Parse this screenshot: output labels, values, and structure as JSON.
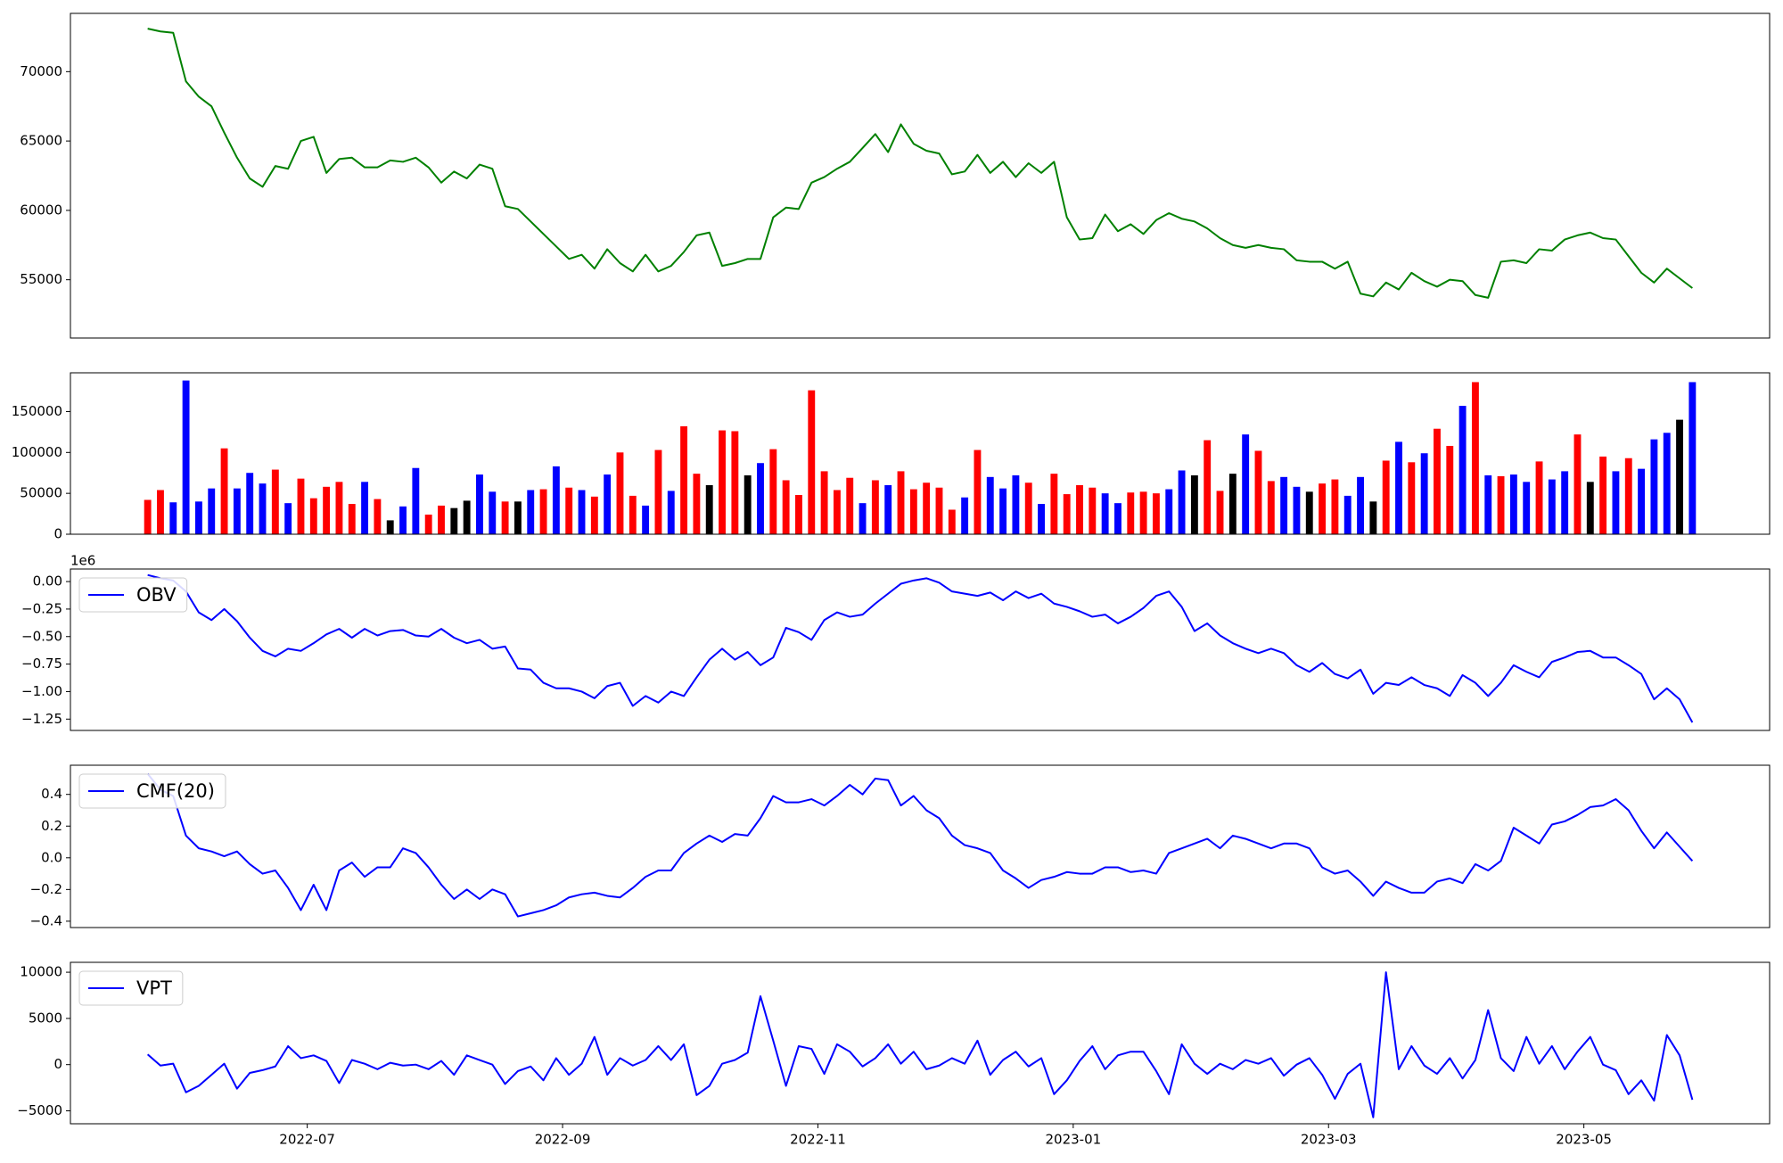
{
  "chart_data": [
    {
      "type": "line",
      "color": "green",
      "values": [
        73100,
        72900,
        72800,
        69300,
        68200,
        67500,
        65600,
        63800,
        62300,
        61700,
        63200,
        63000,
        65000,
        65300,
        62700,
        63700,
        63800,
        63100,
        63100,
        63600,
        63500,
        63800,
        63100,
        62000,
        62800,
        62300,
        63300,
        63000,
        60300,
        60100,
        59200,
        58300,
        57400,
        56500,
        56800,
        55800,
        57200,
        56200,
        55600,
        56800,
        55600,
        56000,
        57000,
        58200,
        58400,
        56000,
        56200,
        56500,
        56500,
        59500,
        60200,
        60100,
        62000,
        62400,
        63000,
        63500,
        64500,
        65500,
        64200,
        66200,
        64800,
        64300,
        64100,
        62600,
        62800,
        64000,
        62700,
        63500,
        62400,
        63400,
        62700,
        63500,
        59500,
        57900,
        58000,
        59700,
        58500,
        59000,
        58300,
        59300,
        59800,
        59400,
        59200,
        58700,
        58000,
        57500,
        57300,
        57500,
        57300,
        57200,
        56400,
        56300,
        56300,
        55800,
        56300,
        54000,
        53800,
        54800,
        54300,
        55500,
        54900,
        54500,
        55000,
        54900,
        53900,
        53700,
        56300,
        56400,
        56200,
        57200,
        57100,
        57900,
        58200,
        58400,
        58000,
        57900,
        56700,
        55500,
        54800,
        55800,
        55100,
        54400
      ],
      "ylim": [
        50800,
        74200
      ],
      "yticks": [
        55000,
        60000,
        65000,
        70000
      ]
    },
    {
      "type": "bar",
      "values": [
        42000,
        54000,
        39000,
        188000,
        40000,
        56000,
        105000,
        56000,
        75000,
        62000,
        79000,
        38000,
        68000,
        44000,
        58000,
        64000,
        37000,
        64000,
        43000,
        17000,
        34000,
        81000,
        24000,
        35000,
        32000,
        41000,
        73000,
        52000,
        40000,
        40000,
        54000,
        55000,
        83000,
        57000,
        54000,
        46000,
        73000,
        100000,
        47000,
        35000,
        103000,
        53000,
        132000,
        74000,
        60000,
        127000,
        126000,
        72000,
        87000,
        104000,
        66000,
        48000,
        176000,
        77000,
        54000,
        69000,
        38000,
        66000,
        60000,
        77000,
        55000,
        63000,
        57000,
        30000,
        45000,
        103000,
        70000,
        56000,
        72000,
        63000,
        37000,
        74000,
        49000,
        60000,
        57000,
        50000,
        38000,
        51000,
        52000,
        50000,
        55000,
        78000,
        72000,
        115000,
        53000,
        74000,
        122000,
        102000,
        65000,
        70000,
        58000,
        52000,
        62000,
        67000,
        47000,
        70000,
        40000,
        90000,
        113000,
        88000,
        99000,
        129000,
        108000,
        157000,
        186000,
        72000,
        71000,
        73000,
        64000,
        89000,
        67000,
        77000,
        122000,
        64000,
        95000,
        77000,
        93000,
        80000,
        116000,
        124000,
        140000,
        186000
      ],
      "colors": [
        "red",
        "red",
        "blue",
        "blue",
        "blue",
        "blue",
        "red",
        "blue",
        "blue",
        "blue",
        "red",
        "blue",
        "red",
        "red",
        "red",
        "red",
        "red",
        "blue",
        "red",
        "black",
        "blue",
        "blue",
        "red",
        "red",
        "black",
        "black",
        "blue",
        "blue",
        "red",
        "black",
        "blue",
        "red",
        "blue",
        "red",
        "blue",
        "red",
        "blue",
        "red",
        "red",
        "blue",
        "red",
        "blue",
        "red",
        "red",
        "black",
        "red",
        "red",
        "black",
        "blue",
        "red",
        "red",
        "red",
        "red",
        "red",
        "red",
        "red",
        "blue",
        "red",
        "blue",
        "red",
        "red",
        "red",
        "red",
        "red",
        "blue",
        "red",
        "blue",
        "blue",
        "blue",
        "red",
        "blue",
        "red",
        "red",
        "red",
        "red",
        "blue",
        "blue",
        "red",
        "red",
        "red",
        "blue",
        "blue",
        "black",
        "red",
        "red",
        "black",
        "blue",
        "red",
        "red",
        "blue",
        "blue",
        "black",
        "red",
        "red",
        "blue",
        "blue",
        "black",
        "red",
        "blue",
        "red",
        "blue",
        "red",
        "red",
        "blue",
        "red",
        "blue",
        "red",
        "blue",
        "blue",
        "red",
        "blue",
        "blue",
        "red",
        "black",
        "red",
        "blue",
        "red",
        "blue",
        "blue",
        "blue",
        "black",
        "blue"
      ],
      "ylim": [
        0,
        197400
      ],
      "yticks": [
        0,
        50000,
        100000,
        150000
      ]
    },
    {
      "type": "line",
      "offset_text": "1e6",
      "legend": "upper left",
      "series": [
        {
          "name": "OBV",
          "color": "blue",
          "values": [
            0.06,
            0.03,
            0.01,
            -0.09,
            -0.28,
            -0.35,
            -0.25,
            -0.36,
            -0.51,
            -0.63,
            -0.68,
            -0.61,
            -0.63,
            -0.56,
            -0.48,
            -0.43,
            -0.51,
            -0.43,
            -0.49,
            -0.45,
            -0.44,
            -0.49,
            -0.5,
            -0.43,
            -0.51,
            -0.56,
            -0.53,
            -0.61,
            -0.59,
            -0.79,
            -0.8,
            -0.92,
            -0.97,
            -0.97,
            -1.0,
            -1.06,
            -0.95,
            -0.92,
            -1.13,
            -1.04,
            -1.1,
            -1.0,
            -1.04,
            -0.87,
            -0.71,
            -0.61,
            -0.71,
            -0.64,
            -0.76,
            -0.69,
            -0.42,
            -0.46,
            -0.53,
            -0.35,
            -0.28,
            -0.32,
            -0.3,
            -0.2,
            -0.11,
            -0.02,
            0.01,
            0.03,
            -0.01,
            -0.09,
            -0.11,
            -0.13,
            -0.1,
            -0.17,
            -0.09,
            -0.15,
            -0.11,
            -0.2,
            -0.23,
            -0.27,
            -0.32,
            -0.3,
            -0.38,
            -0.32,
            -0.24,
            -0.13,
            -0.09,
            -0.23,
            -0.45,
            -0.38,
            -0.49,
            -0.56,
            -0.61,
            -0.65,
            -0.61,
            -0.65,
            -0.76,
            -0.82,
            -0.74,
            -0.84,
            -0.88,
            -0.8,
            -1.02,
            -0.92,
            -0.94,
            -0.87,
            -0.94,
            -0.97,
            -1.04,
            -0.85,
            -0.92,
            -1.04,
            -0.92,
            -0.76,
            -0.82,
            -0.87,
            -0.73,
            -0.69,
            -0.64,
            -0.63,
            -0.69,
            -0.69,
            -0.76,
            -0.84,
            -1.07,
            -0.97,
            -1.07,
            -1.28
          ]
        }
      ],
      "ylim": [
        -1.353,
        0.114
      ],
      "yticks": [
        {
          "value": -1.25,
          "label": "−1.25"
        },
        {
          "value": -1.0,
          "label": "−1.00"
        },
        {
          "value": -0.75,
          "label": "−0.75"
        },
        {
          "value": -0.5,
          "label": "−0.50"
        },
        {
          "value": -0.25,
          "label": "−0.25"
        },
        {
          "value": 0,
          "label": "0.00"
        }
      ]
    },
    {
      "type": "line",
      "legend": "upper left",
      "series": [
        {
          "name": "CMF(20)",
          "color": "blue",
          "values": [
            0.53,
            0.43,
            0.39,
            0.14,
            0.06,
            0.04,
            0.01,
            0.04,
            -0.04,
            -0.1,
            -0.08,
            -0.19,
            -0.33,
            -0.17,
            -0.33,
            -0.08,
            -0.03,
            -0.12,
            -0.06,
            -0.06,
            0.06,
            0.03,
            -0.06,
            -0.17,
            -0.26,
            -0.2,
            -0.26,
            -0.2,
            -0.23,
            -0.37,
            -0.35,
            -0.33,
            -0.3,
            -0.25,
            -0.23,
            -0.22,
            -0.24,
            -0.25,
            -0.19,
            -0.12,
            -0.08,
            -0.08,
            0.03,
            0.09,
            0.14,
            0.1,
            0.15,
            0.14,
            0.25,
            0.39,
            0.35,
            0.35,
            0.37,
            0.33,
            0.39,
            0.46,
            0.4,
            0.5,
            0.49,
            0.33,
            0.39,
            0.3,
            0.25,
            0.14,
            0.08,
            0.06,
            0.03,
            -0.08,
            -0.13,
            -0.19,
            -0.14,
            -0.12,
            -0.09,
            -0.1,
            -0.1,
            -0.06,
            -0.06,
            -0.09,
            -0.08,
            -0.1,
            0.03,
            0.06,
            0.09,
            0.12,
            0.06,
            0.14,
            0.12,
            0.09,
            0.06,
            0.09,
            0.09,
            0.06,
            -0.06,
            -0.1,
            -0.08,
            -0.15,
            -0.24,
            -0.15,
            -0.19,
            -0.22,
            -0.22,
            -0.15,
            -0.13,
            -0.16,
            -0.04,
            -0.08,
            -0.02,
            0.19,
            0.14,
            0.09,
            0.21,
            0.23,
            0.27,
            0.32,
            0.33,
            0.37,
            0.3,
            0.17,
            0.06,
            0.16,
            0.07,
            -0.02
          ]
        }
      ],
      "ylim": [
        -0.44,
        0.584
      ],
      "yticks": [
        {
          "value": -0.4,
          "label": "−0.4"
        },
        {
          "value": -0.2,
          "label": "−0.2"
        },
        {
          "value": 0,
          "label": "0.0"
        },
        {
          "value": 0.2,
          "label": "0.2"
        },
        {
          "value": 0.4,
          "label": "0.4"
        }
      ]
    },
    {
      "type": "line",
      "legend": "upper left",
      "series": [
        {
          "name": "VPT",
          "color": "blue",
          "values": [
            1100,
            -100,
            100,
            -3000,
            -2300,
            -1100,
            100,
            -2600,
            -900,
            -600,
            -200,
            2000,
            700,
            1000,
            400,
            -2000,
            500,
            100,
            -500,
            200,
            -100,
            0,
            -500,
            400,
            -1100,
            1000,
            500,
            0,
            -2100,
            -700,
            -200,
            -1700,
            700,
            -1100,
            100,
            3000,
            -1100,
            700,
            -100,
            500,
            2000,
            500,
            2200,
            -3300,
            -2300,
            100,
            500,
            1300,
            7400,
            2600,
            -2300,
            2000,
            1700,
            -1000,
            2200,
            1400,
            -200,
            700,
            2200,
            100,
            1400,
            -500,
            -100,
            700,
            100,
            2600,
            -1100,
            500,
            1400,
            -200,
            700,
            -3200,
            -1700,
            400,
            2000,
            -500,
            1000,
            1400,
            1400,
            -700,
            -3200,
            2200,
            100,
            -1000,
            100,
            -500,
            500,
            100,
            700,
            -1200,
            0,
            700,
            -1100,
            -3700,
            -1000,
            100,
            -5700,
            10000,
            -500,
            2000,
            -100,
            -1000,
            700,
            -1500,
            500,
            5900,
            700,
            -700,
            3000,
            100,
            2000,
            -500,
            1400,
            3000,
            0,
            -600,
            -3200,
            -1700,
            -3900,
            3200,
            1000,
            -3800
          ]
        }
      ],
      "ylim": [
        -6400,
        11070
      ],
      "yticks": [
        {
          "value": -5000,
          "label": "−5000"
        },
        0,
        5000,
        10000
      ],
      "x": [
        "2022-05",
        "2022-05",
        "2022-05",
        "2022-06",
        "2022-06",
        "2022-06",
        "2022-06",
        "2022-06",
        "2022-06",
        "2022-06",
        "2022-06",
        "2022-06",
        "2022-06",
        "2022-07",
        "2022-07",
        "2022-07",
        "2022-07",
        "2022-07",
        "2022-07",
        "2022-07",
        "2022-07",
        "2022-07",
        "2022-07",
        "2022-08",
        "2022-08",
        "2022-08",
        "2022-08",
        "2022-08",
        "2022-08",
        "2022-08",
        "2022-08",
        "2022-08",
        "2022-08",
        "2022-09",
        "2022-09",
        "2022-09",
        "2022-09",
        "2022-09",
        "2022-09",
        "2022-09",
        "2022-09",
        "2022-09",
        "2022-09",
        "2022-10",
        "2022-10",
        "2022-10",
        "2022-10",
        "2022-10",
        "2022-10",
        "2022-10",
        "2022-10",
        "2022-10",
        "2022-10",
        "2022-11",
        "2022-11",
        "2022-11",
        "2022-11",
        "2022-11",
        "2022-11",
        "2022-11",
        "2022-11",
        "2022-11",
        "2022-11",
        "2022-12",
        "2022-12",
        "2022-12",
        "2022-12",
        "2022-12",
        "2022-12",
        "2022-12",
        "2022-12",
        "2022-12",
        "2022-12",
        "2023-01",
        "2023-01",
        "2023-01",
        "2023-01",
        "2023-01",
        "2023-01",
        "2023-01",
        "2023-01",
        "2023-01",
        "2023-01",
        "2023-02",
        "2023-02",
        "2023-02",
        "2023-02",
        "2023-02",
        "2023-02",
        "2023-02",
        "2023-02",
        "2023-02",
        "2023-02",
        "2023-03",
        "2023-03",
        "2023-03",
        "2023-03",
        "2023-03",
        "2023-03",
        "2023-03",
        "2023-03",
        "2023-03",
        "2023-03",
        "2023-04",
        "2023-04",
        "2023-04",
        "2023-04",
        "2023-04",
        "2023-04",
        "2023-04",
        "2023-04",
        "2023-04",
        "2023-04",
        "2023-05",
        "2023-05",
        "2023-05",
        "2023-05",
        "2023-05",
        "2023-05",
        "2023-05",
        "2023-05",
        "2023-05"
      ],
      "xticks": [
        "2022-07",
        "2022-09",
        "2022-11",
        "2023-01",
        "2023-03",
        "2023-05"
      ]
    }
  ]
}
